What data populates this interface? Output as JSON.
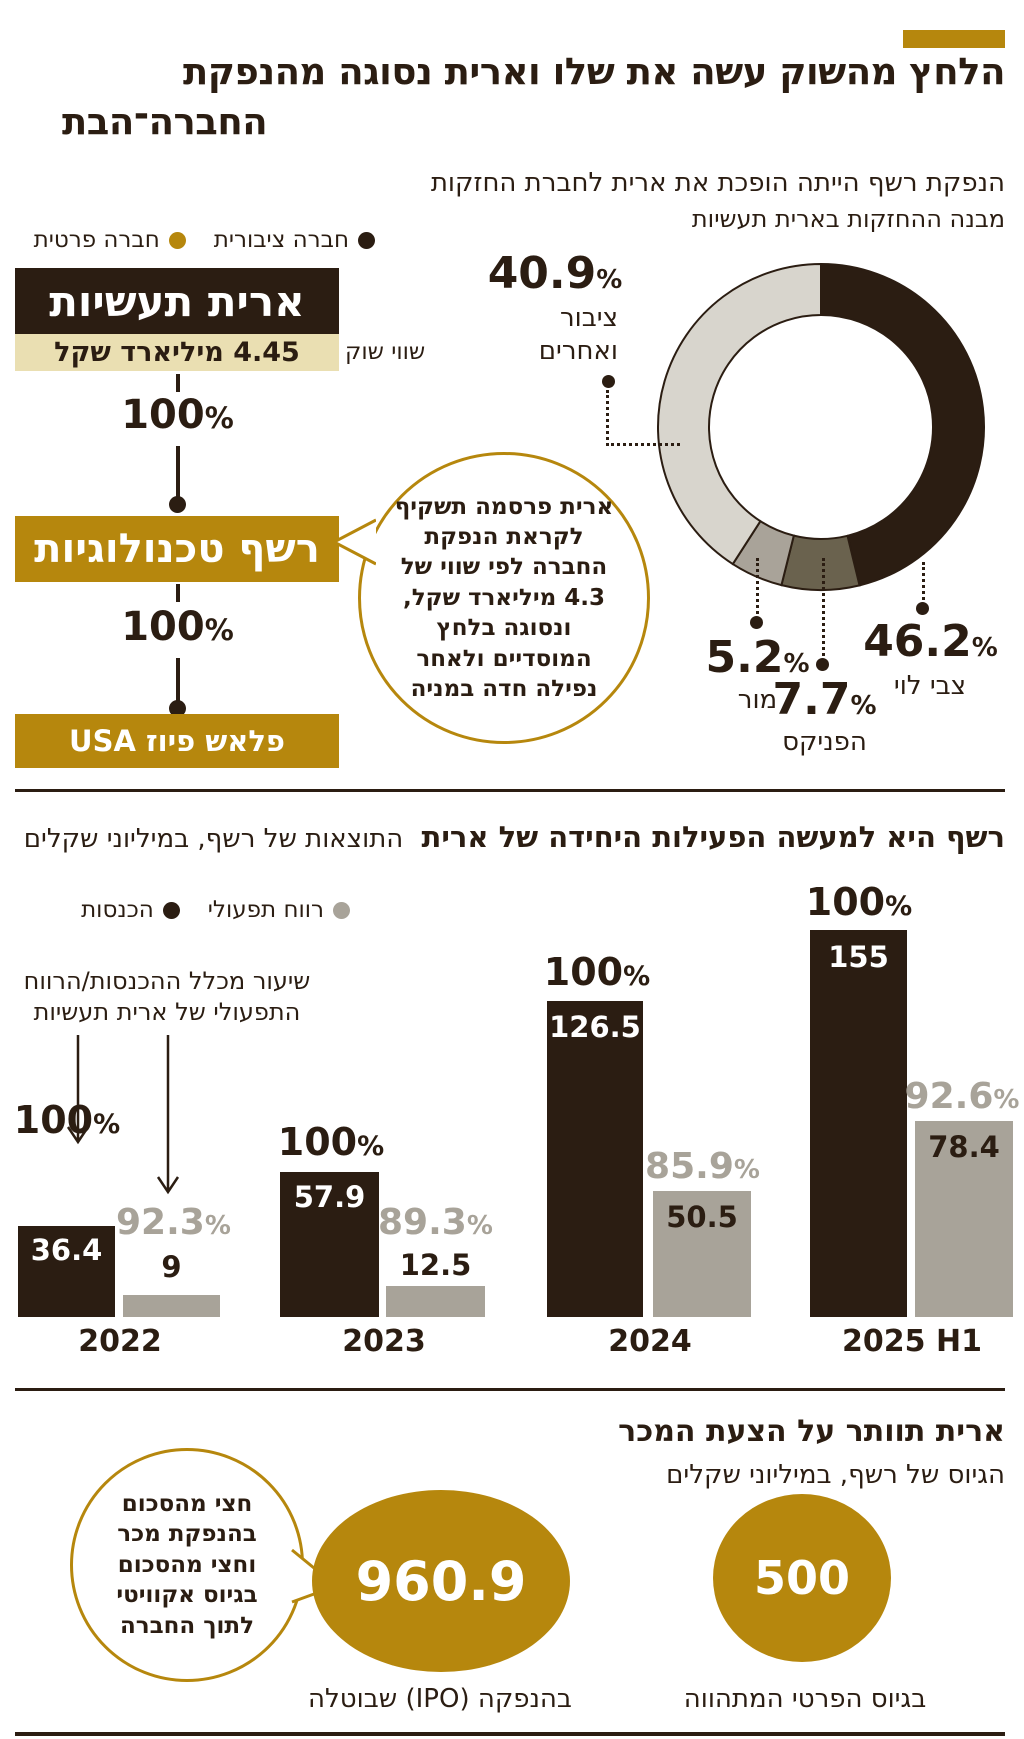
{
  "colors": {
    "dark": "#2b1d12",
    "gold": "#b6870d",
    "cream": "#eadfb2",
    "gray": "#a8a399",
    "donut": [
      "#2b1d12",
      "#6a624e",
      "#a9a399",
      "#d8d5cd"
    ]
  },
  "header": {
    "title_line1": "הלחץ מהשוק עשה את שלו וארית נסוגה מהנפקת",
    "title_line2": "החברה־הבת",
    "subtitle": "הנפקת רשף הייתה הופכת את ארית לחברת החזקות"
  },
  "holdings": {
    "title": "מבנה ההחזקות בארית תעשיות",
    "legend": [
      {
        "label": "חברה ציבורית",
        "color": "#2b1d12"
      },
      {
        "label": "חברה פרטית",
        "color": "#b6870d"
      }
    ],
    "org": {
      "parent": "ארית תעשיות",
      "market_cap_value": "4.45 מיליארד שקל",
      "market_cap_label": "שווי שוק",
      "pct1": "100",
      "child": "רשף טכנולוגיות",
      "pct2": "100",
      "grandchild": "פלאש פיוז USA"
    },
    "callout": "ארית פרסמה תשקיף לקראת הנפקת החברה לפי שווי של 4.3 מיליארד שקל, ונסוגה בלחץ המוסדיים ולאחר נפילה חדה במניה"
  },
  "results": {
    "header_bold": "רשף היא למעשה הפעילות היחידה של ארית",
    "header_rest": "התוצאות של רשף, במיליוני שקלים",
    "legend": [
      {
        "label": "רווח תפעולי",
        "color": "#a8a399"
      },
      {
        "label": "הכנסות",
        "color": "#2b1d12"
      }
    ],
    "annotation": "שיעור מכלל ההכנסות/הרווח התפעולי של ארית תעשיות"
  },
  "offer": {
    "title": "ארית תוותר על הצעת המכר",
    "subtitle": "הגיוס של רשף, במיליוני שקלים",
    "bubble": "חצי מהסכום בהנפקת מכר וחצי מהסכום בגיוס אקוויטי לתוך החברה"
  },
  "chart_data": [
    {
      "type": "pie",
      "title": "מבנה ההחזקות בארית תעשיות",
      "labels": [
        "צבי לוי",
        "הפניקס",
        "מור",
        "ציבור ואחרים"
      ],
      "values": [
        46.2,
        7.7,
        5.2,
        40.9
      ],
      "colors": [
        "#2b1d12",
        "#6a624e",
        "#a9a399",
        "#d8d5cd"
      ],
      "donut": true,
      "start_angle_deg": 0,
      "direction": "clockwise"
    },
    {
      "type": "bar",
      "title": "התוצאות של רשף, במיליוני שקלים",
      "categories": [
        "2022",
        "2023",
        "2024",
        "2025 H1"
      ],
      "series": [
        {
          "name": "הכנסות",
          "color": "#2b1d12",
          "values": [
            36.4,
            57.9,
            126.5,
            155
          ],
          "pct_of_arit": [
            "100",
            "100",
            "100",
            "100"
          ]
        },
        {
          "name": "רווח תפעולי",
          "color": "#a8a399",
          "values": [
            9,
            12.5,
            50.5,
            78.4
          ],
          "pct_of_arit": [
            "92.3",
            "89.3",
            "85.9",
            "92.6"
          ]
        }
      ],
      "unit": "מיליוני שקלים",
      "grid": false,
      "legend_position": "top-right"
    },
    {
      "type": "bubble",
      "title": "הגיוס של רשף, במיליוני שקלים",
      "items": [
        {
          "label": "בהנפקה (IPO) שבוטלה",
          "value": 960.9
        },
        {
          "label": "בגיוס הפרטי המתהווה",
          "value": 500
        }
      ]
    }
  ]
}
